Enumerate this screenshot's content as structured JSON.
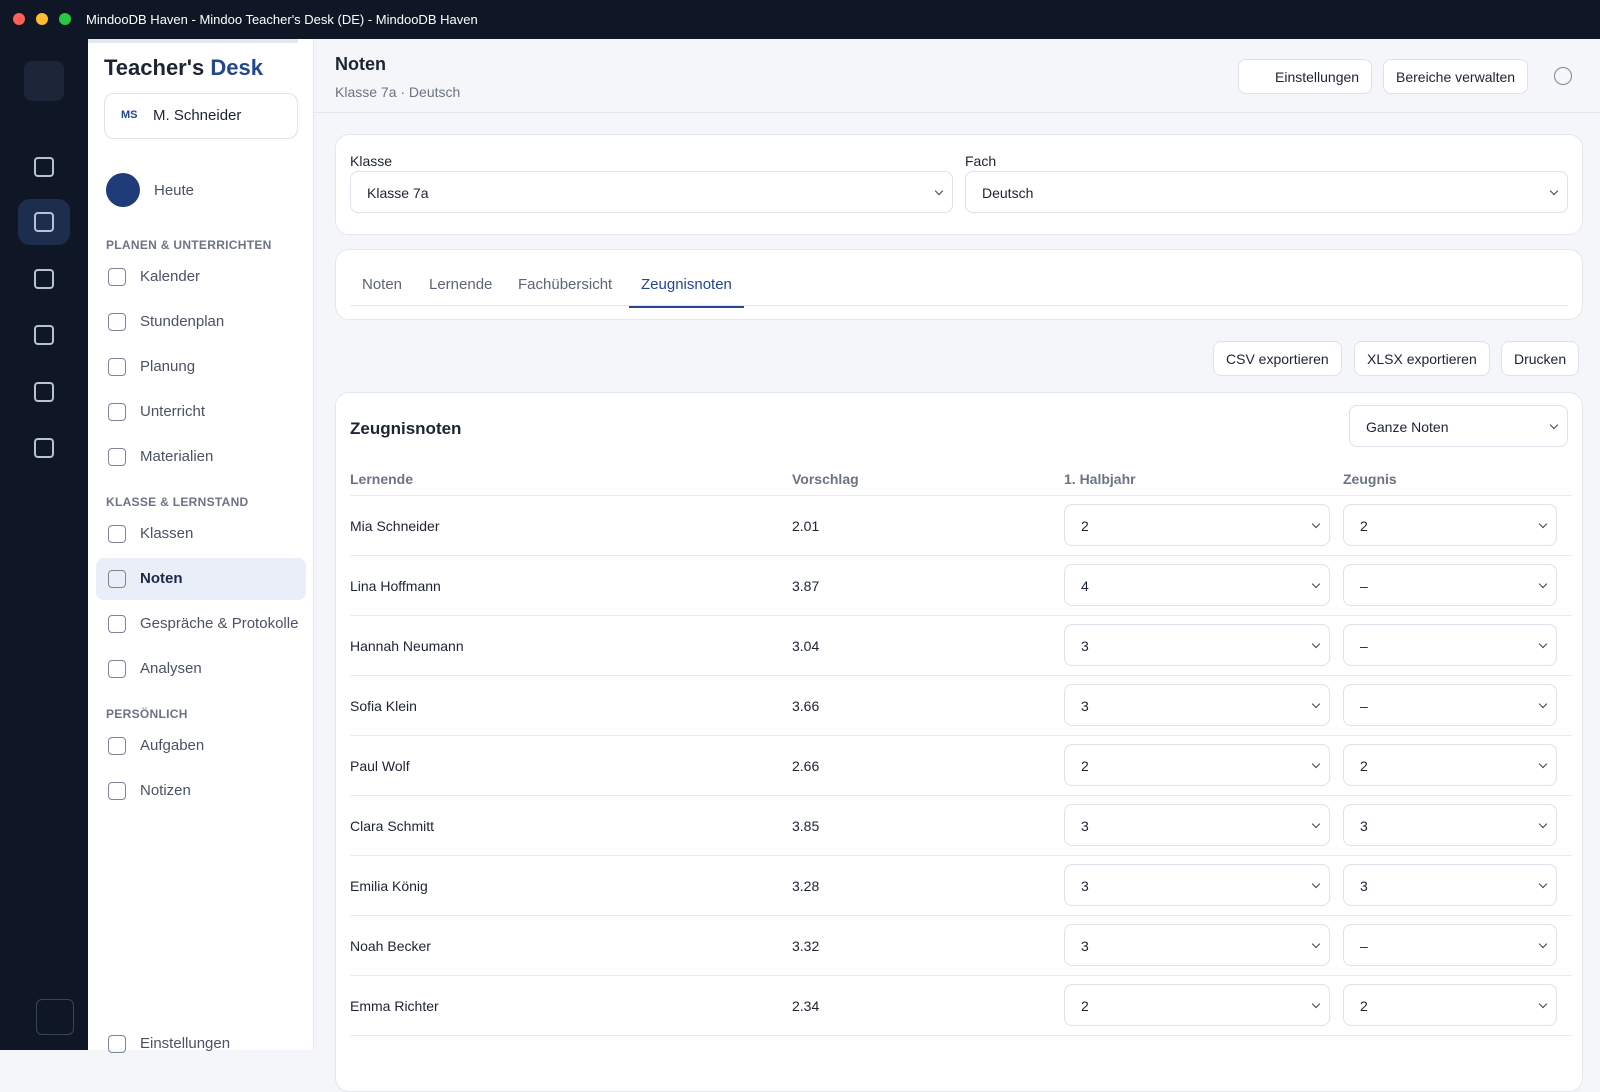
{
  "window": {
    "title": "MindooDB Haven - Mindoo Teacher's Desk (DE) - MindooDB Haven"
  },
  "sidebar": {
    "brand_a": "Teacher's",
    "brand_b": "Desk",
    "user": {
      "initials": "MS",
      "name": "M. Schneider"
    },
    "today": "Heute",
    "sections": [
      {
        "title": "PLANEN & UNTERRICHTEN",
        "items": [
          "Kalender",
          "Stundenplan",
          "Planung",
          "Unterricht",
          "Materialien"
        ]
      },
      {
        "title": "KLASSE & LERNSTAND",
        "items": [
          "Klassen",
          "Noten",
          "Gespräche & Protokolle",
          "Analysen"
        ]
      },
      {
        "title": "PERSÖNLICH",
        "items": [
          "Aufgaben",
          "Notizen"
        ]
      }
    ],
    "settings": "Einstellungen"
  },
  "header": {
    "title": "Noten",
    "subtitle": "Klasse 7a · Deutsch",
    "buttons": [
      "Einstellungen",
      "Bereiche verwalten"
    ]
  },
  "filters": [
    {
      "label": "Klasse",
      "value": "Klasse 7a"
    },
    {
      "label": "Fach",
      "value": "Deutsch"
    }
  ],
  "tabs": [
    "Noten",
    "Lernende",
    "Fachübersicht",
    "Zeugnisnoten"
  ],
  "actions": [
    "CSV exportieren",
    "XLSX exportieren",
    "Drucken"
  ],
  "table": {
    "title": "Zeugnisnoten",
    "mode": "Ganze Noten",
    "columns": [
      "Lernende",
      "Vorschlag",
      "1. Halbjahr",
      "Zeugnis"
    ],
    "rows": [
      [
        "Mia Schneider",
        "2.01",
        "2",
        "2"
      ],
      [
        "Lina Hoffmann",
        "3.87",
        "4",
        "–"
      ],
      [
        "Hannah Neumann",
        "3.04",
        "3",
        "–"
      ],
      [
        "Sofia Klein",
        "3.66",
        "3",
        "–"
      ],
      [
        "Paul Wolf",
        "2.66",
        "2",
        "2"
      ],
      [
        "Clara Schmitt",
        "3.85",
        "3",
        "3"
      ],
      [
        "Emilia König",
        "3.28",
        "3",
        "3"
      ],
      [
        "Noah Becker",
        "3.32",
        "3",
        "–"
      ],
      [
        "Emma Richter",
        "2.34",
        "2",
        "2"
      ]
    ]
  }
}
